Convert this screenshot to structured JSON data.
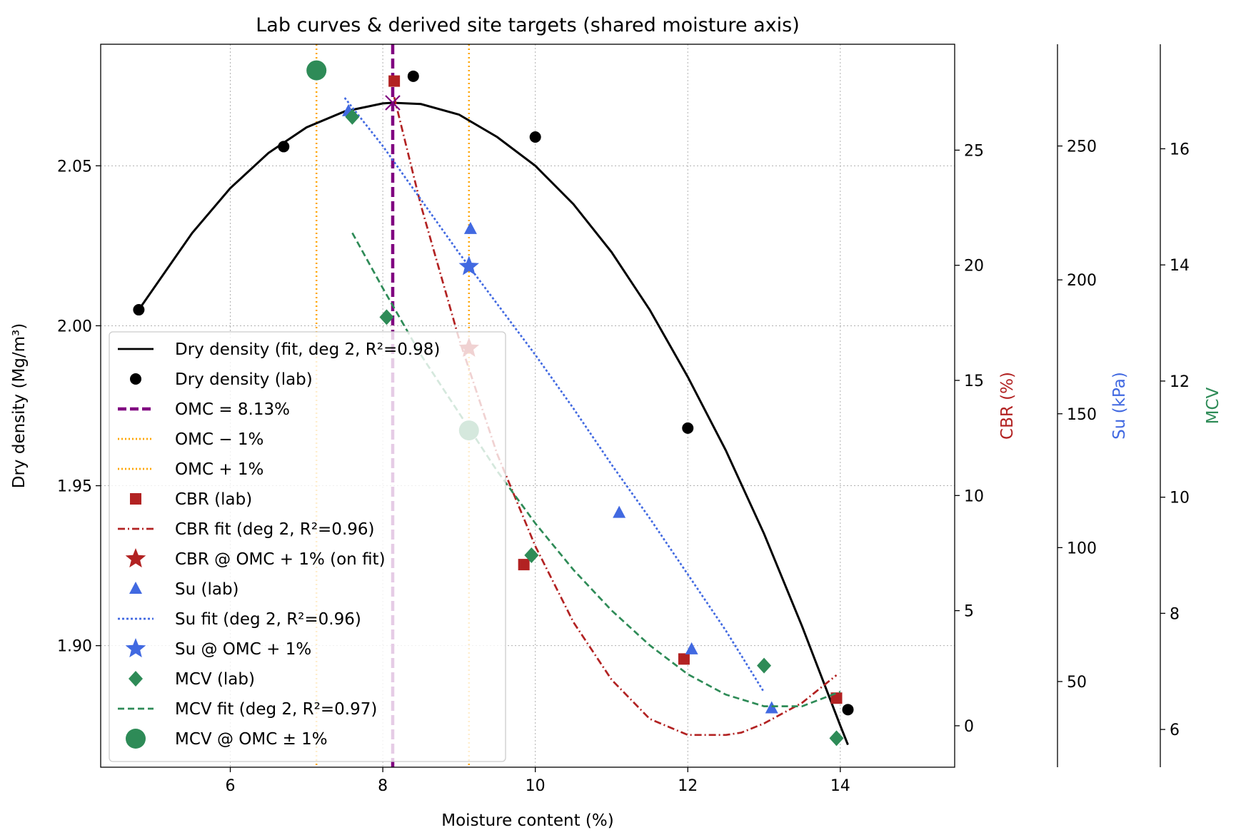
{
  "chart_data": {
    "type": "line",
    "title": "Lab curves & derived site targets (shared moisture axis)",
    "xlabel": "Moisture content (%)",
    "xlim": [
      4.3,
      15.5
    ],
    "xticks": [
      6,
      8,
      10,
      12,
      14
    ],
    "axes": {
      "density": {
        "label": "Dry density (Mg/m³)",
        "color": "#000000",
        "ylim": [
          1.862,
          2.088
        ],
        "ticks": [
          1.9,
          1.95,
          2.0,
          2.05
        ],
        "tick_labels": [
          "1.90",
          "1.95",
          "2.00",
          "2.05"
        ]
      },
      "cbr": {
        "label": "CBR (%)",
        "color": "#b22222",
        "ylim": [
          -1.8,
          29.6
        ],
        "ticks": [
          0,
          5,
          10,
          15,
          20,
          25
        ],
        "tick_labels": [
          "0",
          "5",
          "10",
          "15",
          "20",
          "25"
        ]
      },
      "su": {
        "label": "Su (kPa)",
        "color": "#4169e1",
        "ylim": [
          18,
          288
        ],
        "ticks": [
          50,
          100,
          150,
          200,
          250
        ],
        "tick_labels": [
          "50",
          "100",
          "150",
          "200",
          "250"
        ]
      },
      "mcv": {
        "label": "MCV",
        "color": "#2e8b57",
        "ylim": [
          5.35,
          17.8
        ],
        "ticks": [
          6,
          8,
          10,
          12,
          14,
          16
        ],
        "tick_labels": [
          "6",
          "8",
          "10",
          "12",
          "14",
          "16"
        ]
      }
    },
    "grid": true,
    "legend_position": "lower-left",
    "omc": 8.13,
    "omc_minus": 7.13,
    "omc_plus": 9.13,
    "series": [
      {
        "key": "dd_fit",
        "name": "Dry density (fit, deg 2, R²=0.98)",
        "axis": "density",
        "kind": "line",
        "color": "#000000",
        "dash": "",
        "x": [
          4.8,
          5.5,
          6.0,
          6.5,
          7.0,
          7.5,
          8.0,
          8.13,
          8.5,
          9.0,
          9.5,
          10.0,
          10.5,
          11.0,
          11.5,
          12.0,
          12.5,
          13.0,
          13.5,
          14.0,
          14.1
        ],
        "y": [
          2.005,
          2.029,
          2.043,
          2.054,
          2.062,
          2.067,
          2.0695,
          2.0697,
          2.0693,
          2.066,
          2.059,
          2.05,
          2.038,
          2.023,
          2.005,
          1.984,
          1.961,
          1.935,
          1.906,
          1.875,
          1.869
        ]
      },
      {
        "key": "dd_lab",
        "name": "Dry density (lab)",
        "axis": "density",
        "kind": "scatter",
        "marker": "circle",
        "color": "#000000",
        "x": [
          4.8,
          6.7,
          8.4,
          10.0,
          12.0,
          14.1
        ],
        "y": [
          2.005,
          2.056,
          2.078,
          2.059,
          1.968,
          1.88
        ]
      },
      {
        "key": "cbr_lab",
        "name": "CBR (lab)",
        "axis": "cbr",
        "kind": "scatter",
        "marker": "square",
        "color": "#b22222",
        "x": [
          8.15,
          9.85,
          11.95,
          13.95
        ],
        "y": [
          28.0,
          7.0,
          2.9,
          1.2
        ]
      },
      {
        "key": "cbr_fit",
        "name": "CBR fit (deg 2, R²=0.96)",
        "axis": "cbr",
        "kind": "line",
        "color": "#b22222",
        "dash": "10,4,2,4",
        "x": [
          8.15,
          8.5,
          9.0,
          9.5,
          10.0,
          10.5,
          11.0,
          11.5,
          12.0,
          12.5,
          12.7,
          13.0,
          13.5,
          13.95
        ],
        "y": [
          27.3,
          22.6,
          16.8,
          11.8,
          7.8,
          4.5,
          2.0,
          0.3,
          -0.4,
          -0.4,
          -0.3,
          0.1,
          1.0,
          2.2
        ]
      },
      {
        "key": "cbr_target",
        "name": "CBR @ OMC + 1% (on fit)",
        "axis": "cbr",
        "kind": "scatter",
        "marker": "star",
        "color": "#b22222",
        "x": [
          9.13
        ],
        "y": [
          16.4
        ]
      },
      {
        "key": "su_lab",
        "name": "Su (lab)",
        "axis": "su",
        "kind": "scatter",
        "marker": "triangle",
        "color": "#4169e1",
        "x": [
          7.55,
          9.15,
          11.1,
          12.05,
          13.1
        ],
        "y": [
          263,
          219,
          113,
          62,
          40
        ]
      },
      {
        "key": "su_fit",
        "name": "Su fit (deg 2, R²=0.96)",
        "axis": "su",
        "kind": "line",
        "color": "#4169e1",
        "dash": "3,3",
        "x": [
          7.5,
          8.0,
          8.5,
          9.0,
          9.5,
          10.0,
          10.5,
          11.0,
          11.5,
          12.0,
          12.5,
          13.0
        ],
        "y": [
          268,
          250,
          230,
          210,
          191,
          172,
          152,
          131,
          111,
          90,
          69,
          46
        ]
      },
      {
        "key": "su_target",
        "name": "Su @ OMC + 1%",
        "axis": "su",
        "kind": "scatter",
        "marker": "star",
        "color": "#4169e1",
        "x": [
          9.13
        ],
        "y": [
          205
        ]
      },
      {
        "key": "mcv_lab",
        "name": "MCV (lab)",
        "axis": "mcv",
        "kind": "scatter",
        "marker": "diamond",
        "color": "#2e8b57",
        "x": [
          7.6,
          8.05,
          9.95,
          13.0,
          13.95
        ],
        "y": [
          16.55,
          13.1,
          9.0,
          7.1,
          5.85
        ]
      },
      {
        "key": "mcv_fit",
        "name": "MCV fit (deg 2, R²=0.97)",
        "axis": "mcv",
        "kind": "line",
        "color": "#2e8b57",
        "dash": "9,5",
        "x": [
          7.6,
          8.0,
          8.5,
          9.0,
          9.5,
          10.0,
          10.5,
          11.0,
          11.5,
          12.0,
          12.5,
          13.0,
          13.5,
          14.0
        ],
        "y": [
          14.55,
          13.6,
          12.45,
          11.45,
          10.45,
          9.55,
          8.75,
          8.05,
          7.45,
          6.95,
          6.6,
          6.4,
          6.4,
          6.65
        ]
      },
      {
        "key": "mcv_target",
        "name": "MCV @ OMC ± 1%",
        "axis": "mcv",
        "kind": "scatter",
        "marker": "bigcircle",
        "color": "#2e8b57",
        "x": [
          7.13,
          9.13
        ],
        "y": [
          17.35,
          11.15
        ]
      }
    ],
    "legend": [
      {
        "label": "Dry density (fit, deg 2, R²=0.98)",
        "symbol": "line",
        "color": "#000000",
        "dash": ""
      },
      {
        "label": "Dry density (lab)",
        "symbol": "circle",
        "color": "#000000"
      },
      {
        "label": "OMC = 8.13%",
        "symbol": "line",
        "color": "#800080",
        "dash": "12,5"
      },
      {
        "label": "OMC − 1%",
        "symbol": "line",
        "color": "#ffa500",
        "dash": "2,3"
      },
      {
        "label": "OMC + 1%",
        "symbol": "line",
        "color": "#ffa500",
        "dash": "2,3"
      },
      {
        "label": "CBR (lab)",
        "symbol": "square",
        "color": "#b22222"
      },
      {
        "label": "CBR fit (deg 2, R²=0.96)",
        "symbol": "line",
        "color": "#b22222",
        "dash": "10,4,2,4"
      },
      {
        "label": "CBR @ OMC + 1% (on fit)",
        "symbol": "star",
        "color": "#b22222"
      },
      {
        "label": "Su (lab)",
        "symbol": "triangle",
        "color": "#4169e1"
      },
      {
        "label": "Su fit (deg 2, R²=0.96)",
        "symbol": "line",
        "color": "#4169e1",
        "dash": "3,3"
      },
      {
        "label": "Su @ OMC + 1%",
        "symbol": "star",
        "color": "#4169e1"
      },
      {
        "label": "MCV (lab)",
        "symbol": "diamond",
        "color": "#2e8b57"
      },
      {
        "label": "MCV fit (deg 2, R²=0.97)",
        "symbol": "line",
        "color": "#2e8b57",
        "dash": "9,5"
      },
      {
        "label": "MCV @ OMC ± 1%",
        "symbol": "bigcircle",
        "color": "#2e8b57"
      }
    ]
  }
}
